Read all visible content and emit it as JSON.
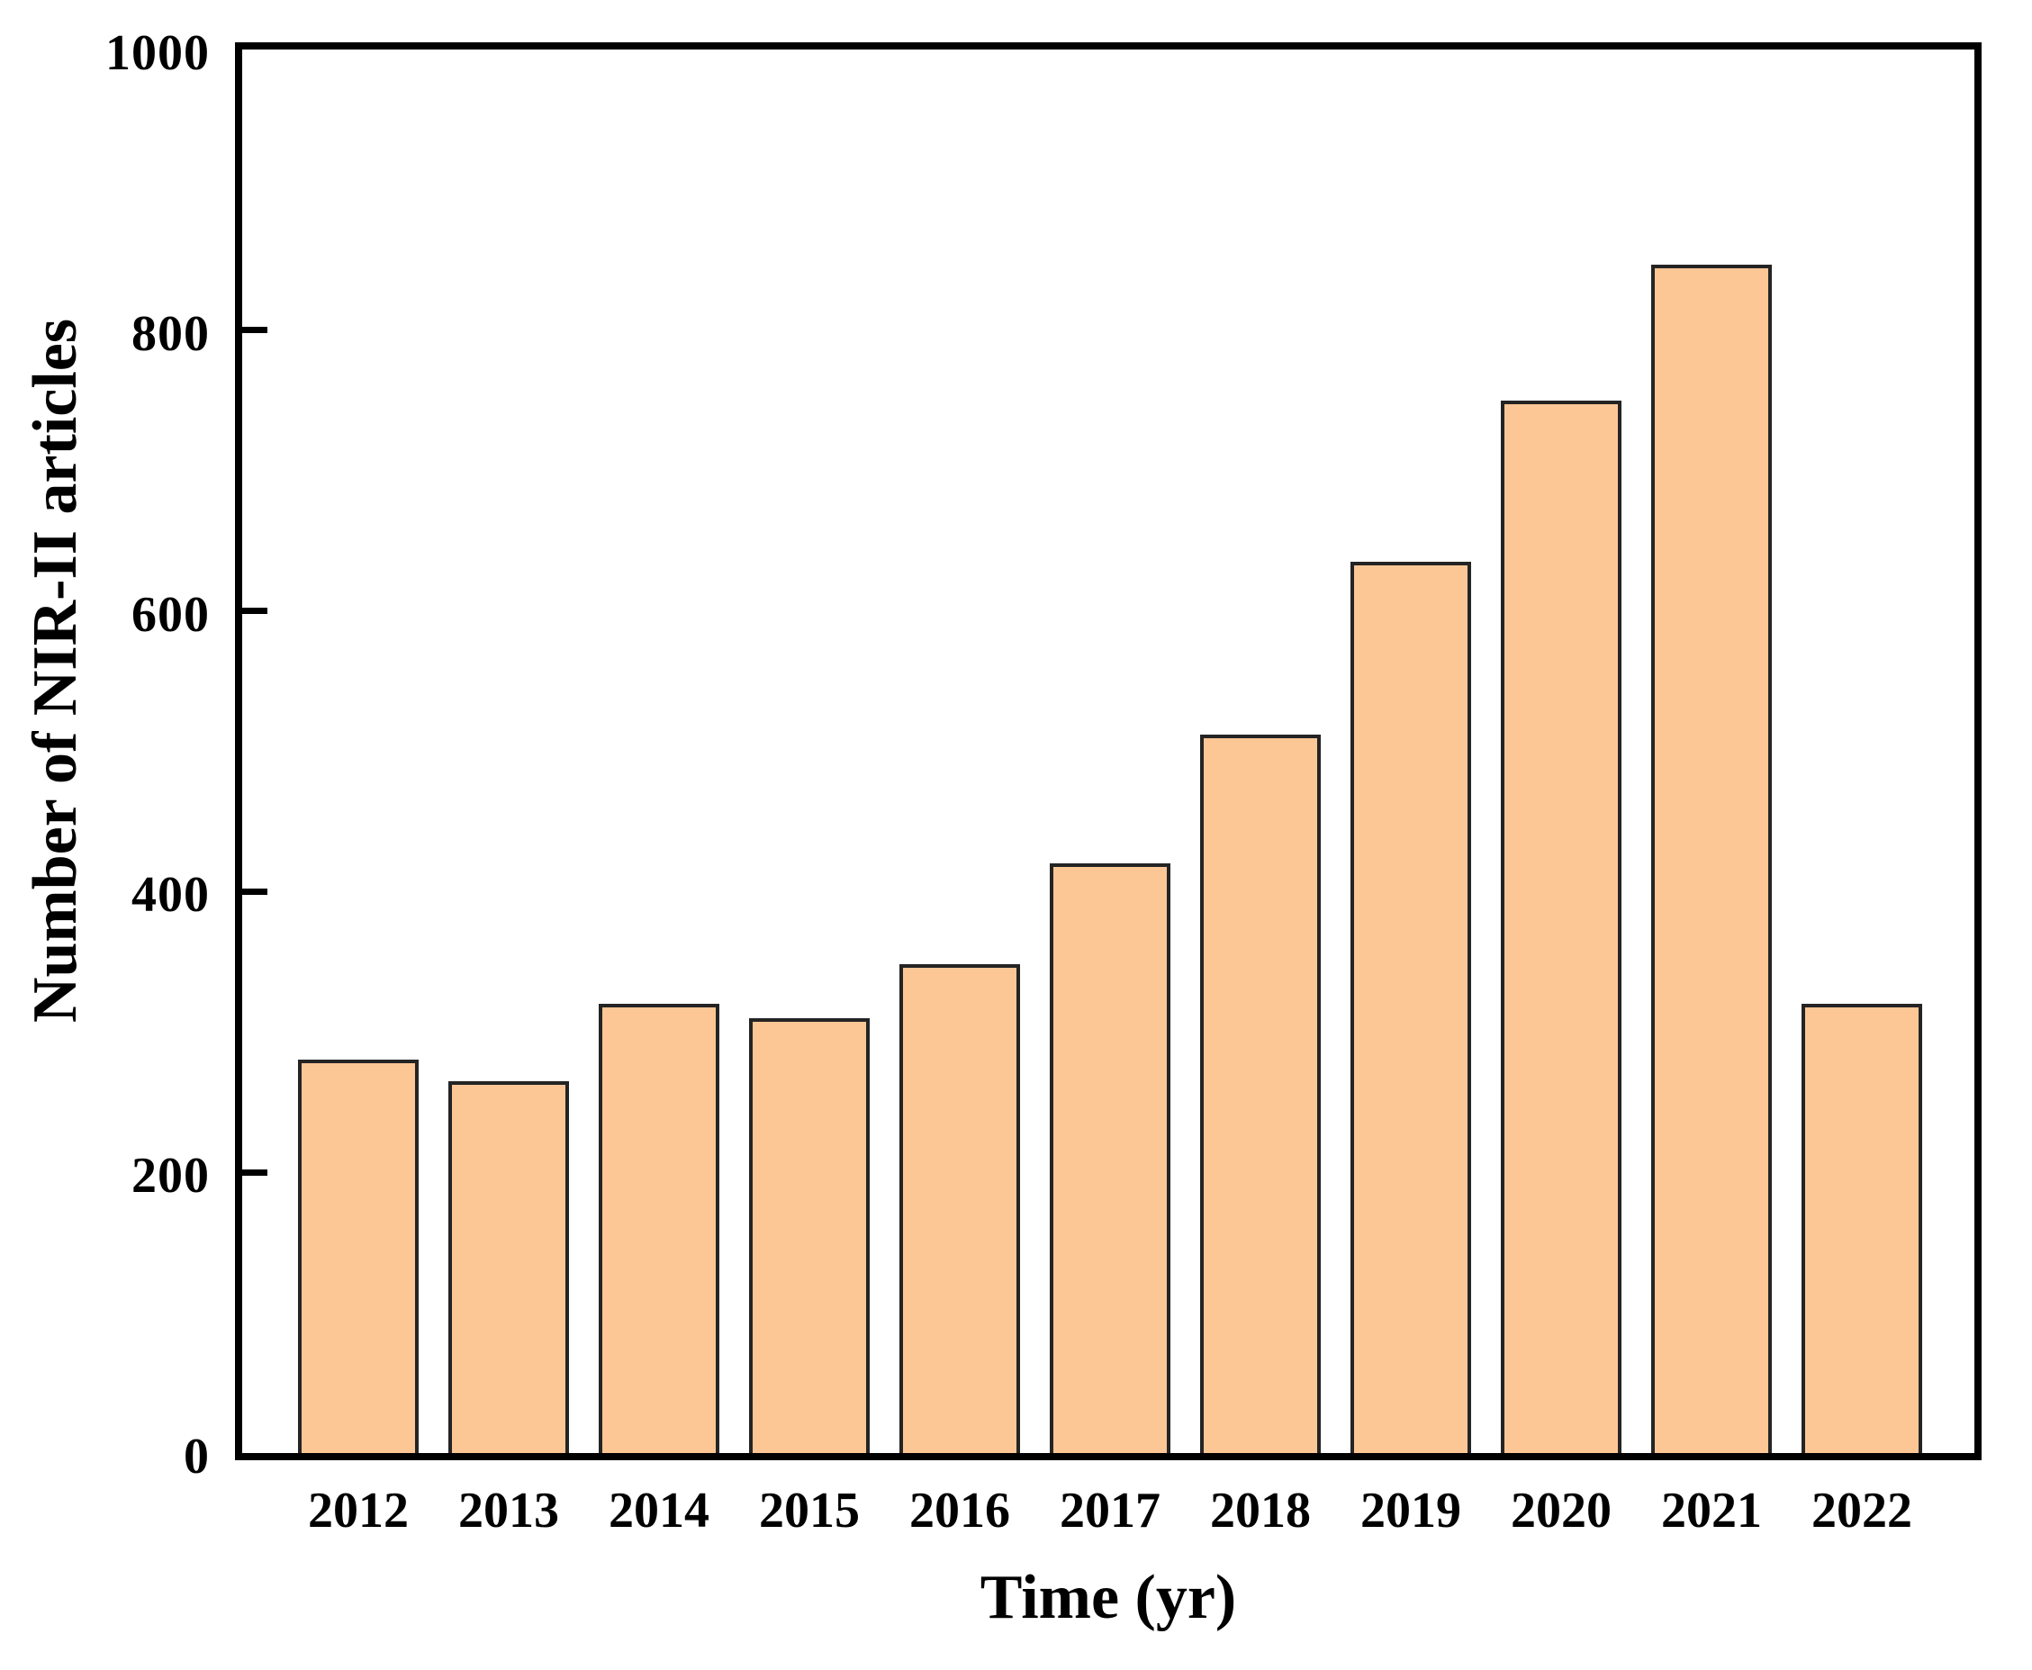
{
  "chart_data": {
    "type": "bar",
    "title": "",
    "xlabel": "Time (yr)",
    "ylabel": "Number of NIR-II articles",
    "categories": [
      "2012",
      "2013",
      "2014",
      "2015",
      "2016",
      "2017",
      "2018",
      "2019",
      "2020",
      "2021",
      "2022"
    ],
    "values": [
      280,
      265,
      320,
      310,
      348,
      420,
      512,
      635,
      750,
      847,
      320
    ],
    "ylim": [
      0,
      1000
    ],
    "yticks": [
      0,
      200,
      400,
      600,
      800,
      1000
    ],
    "grid": false,
    "legend": null,
    "bar_fill_color": "#FCC795",
    "bar_edge_color": "#242424",
    "axis_color": "#000000",
    "background_color": "#ffffff"
  }
}
